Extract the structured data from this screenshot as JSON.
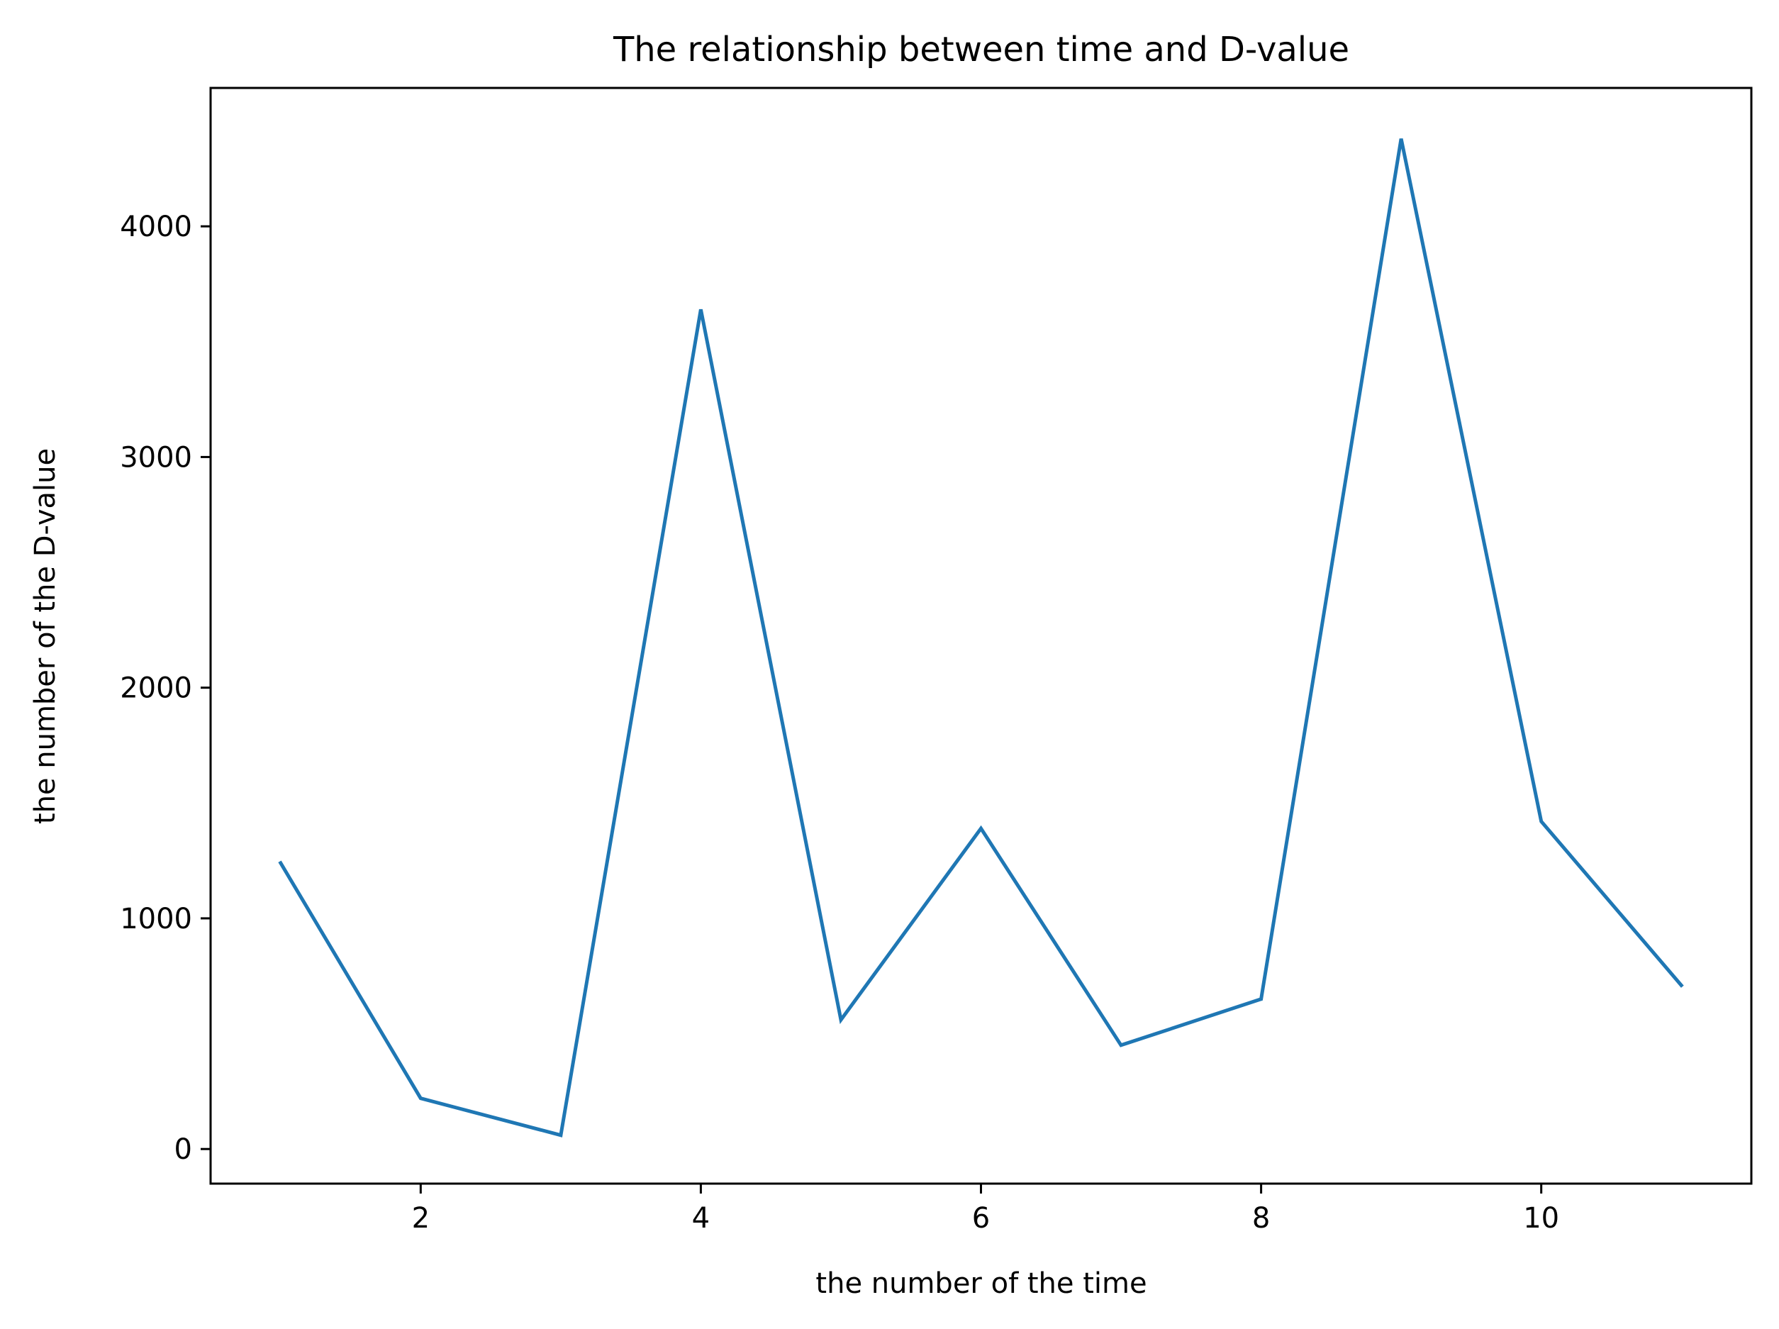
{
  "chart_data": {
    "type": "line",
    "title": "The relationship between time and D-value",
    "xlabel": "the number of the time",
    "ylabel": "the number of the D-value",
    "xlim": [
      0.5,
      11.5
    ],
    "ylim": [
      -150,
      4600
    ],
    "xticks": [
      2,
      4,
      6,
      8,
      10
    ],
    "yticks": [
      0,
      1000,
      2000,
      3000,
      4000
    ],
    "grid": false,
    "series": [
      {
        "color": "#1f77b4",
        "x": [
          1,
          2,
          3,
          4,
          5,
          6,
          7,
          8,
          9,
          10,
          11
        ],
        "y": [
          1240,
          220,
          60,
          3640,
          560,
          1390,
          450,
          650,
          4380,
          1420,
          710
        ]
      }
    ]
  }
}
